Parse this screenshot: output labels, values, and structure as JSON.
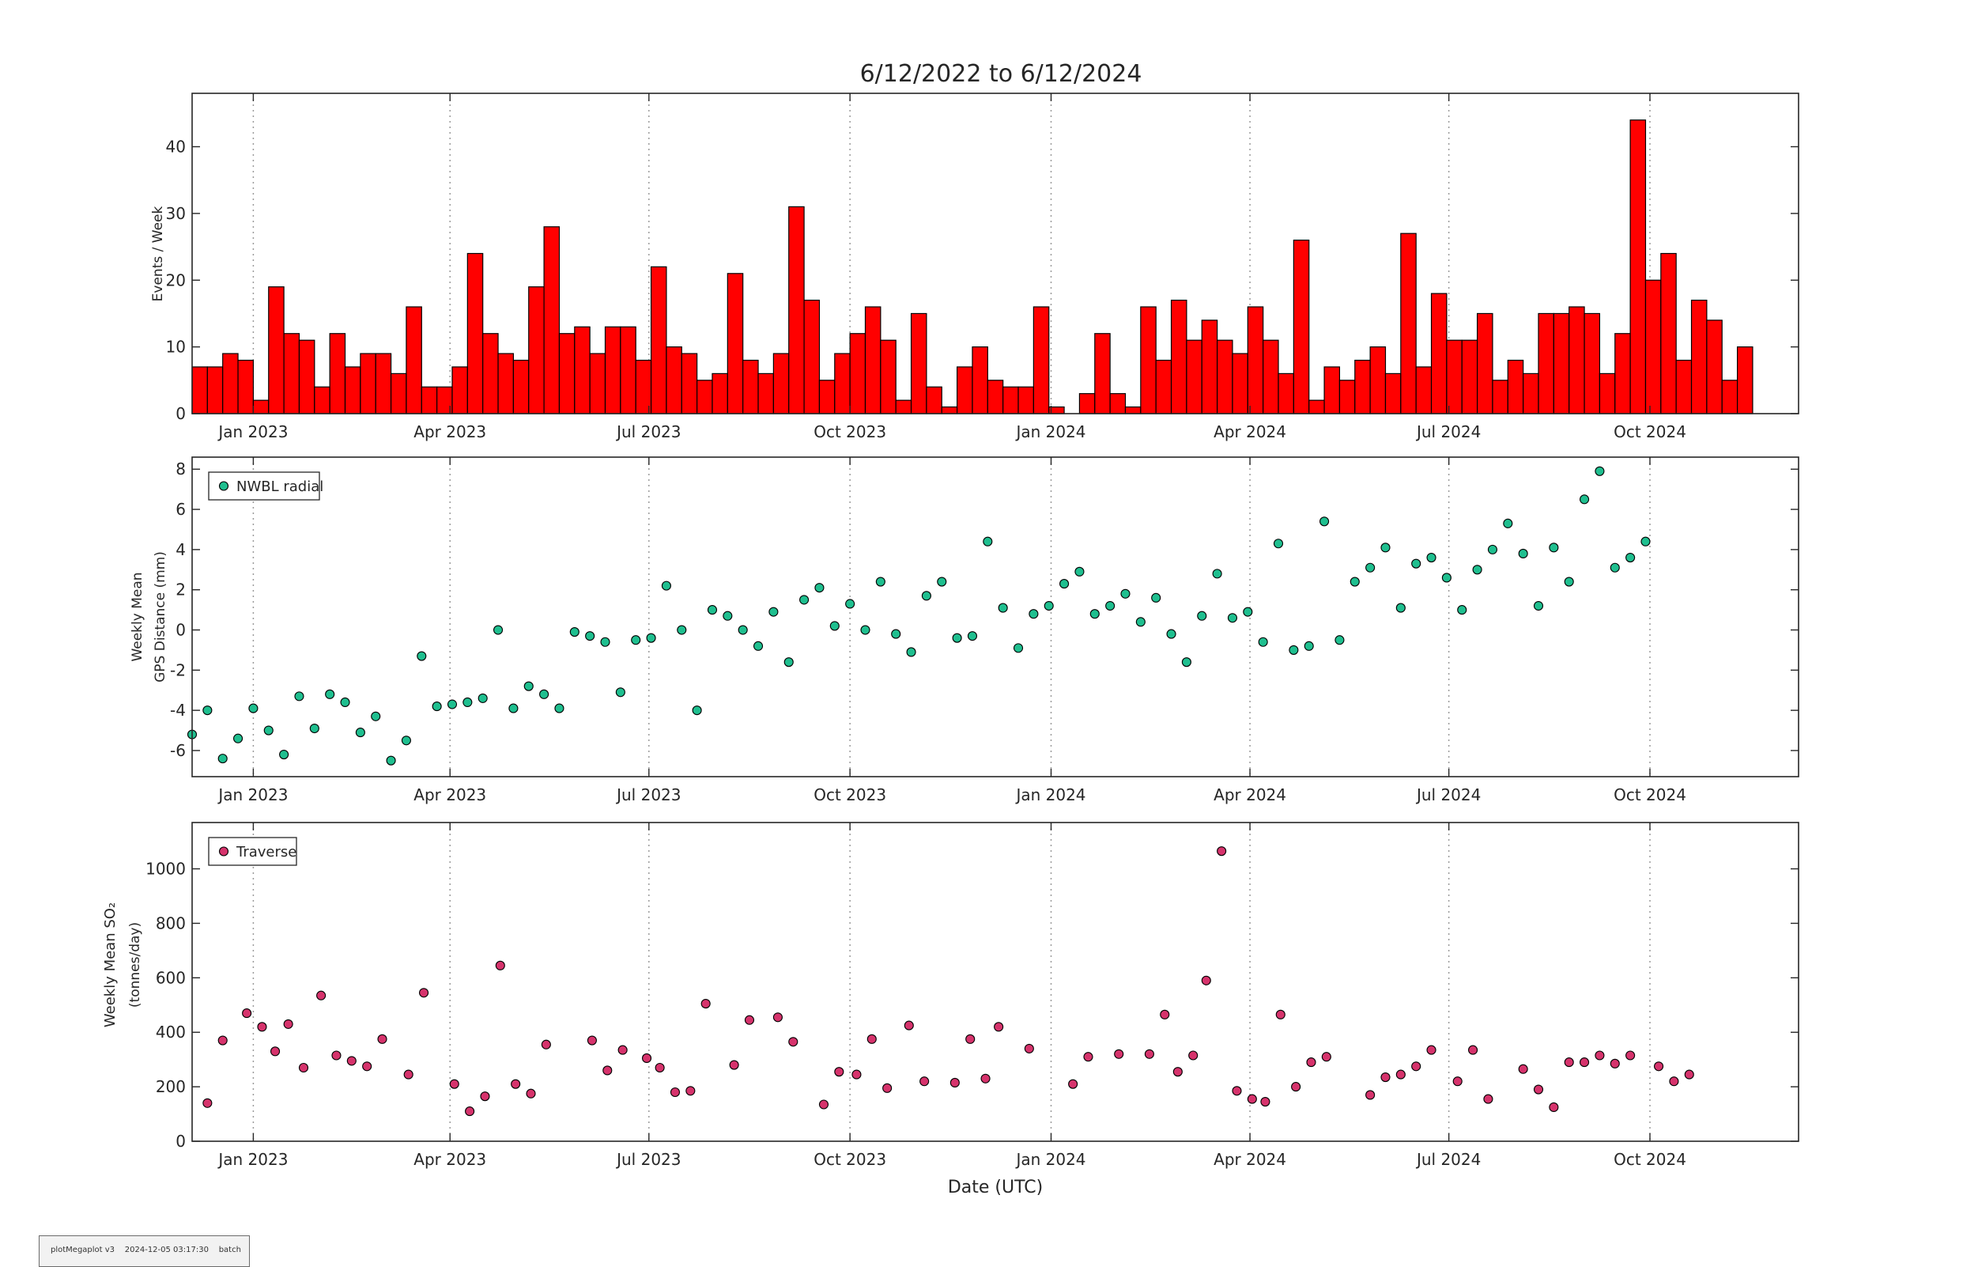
{
  "title": "6/12/2022 to 6/12/2024",
  "footer": {
    "program": "plotMegaplot v3",
    "timestamp": "2024-12-05 03:17:30",
    "mode": "batch"
  },
  "colors": {
    "bar_fill": "#ff0000",
    "gps_marker": "#1fbf8f",
    "so2_marker": "#d6336c",
    "axes": "#262626",
    "grid": "#9a9a9a"
  },
  "chart_data": [
    {
      "type": "bar",
      "panel": "events",
      "ylabel": "Events / Week",
      "ylim": [
        0,
        48
      ],
      "yticks": [
        0,
        10,
        20,
        30,
        40
      ],
      "xlim": [
        "2022-12-04",
        "2024-12-08"
      ],
      "xticks": [
        {
          "date": "2023-01-01",
          "label": "Jan 2023"
        },
        {
          "date": "2023-04-01",
          "label": "Apr 2023"
        },
        {
          "date": "2023-07-01",
          "label": "Jul 2023"
        },
        {
          "date": "2023-10-01",
          "label": "Oct 2023"
        },
        {
          "date": "2024-01-01",
          "label": "Jan 2024"
        },
        {
          "date": "2024-04-01",
          "label": "Apr 2024"
        },
        {
          "date": "2024-07-01",
          "label": "Jul 2024"
        },
        {
          "date": "2024-10-01",
          "label": "Oct 2024"
        }
      ],
      "grid": "vertical dotted at x ticks",
      "week_start": "2022-12-04",
      "bin_days": 7,
      "values": [
        7,
        7,
        9,
        8,
        2,
        19,
        12,
        11,
        4,
        12,
        7,
        9,
        9,
        6,
        16,
        4,
        4,
        7,
        24,
        12,
        9,
        8,
        19,
        28,
        12,
        13,
        9,
        13,
        13,
        8,
        22,
        10,
        9,
        5,
        6,
        21,
        8,
        6,
        9,
        31,
        17,
        5,
        9,
        12,
        16,
        11,
        2,
        15,
        4,
        1,
        7,
        10,
        5,
        4,
        4,
        16,
        1,
        0,
        3,
        12,
        3,
        1,
        16,
        8,
        17,
        11,
        14,
        11,
        9,
        16,
        11,
        6,
        26,
        2,
        7,
        5,
        8,
        10,
        6,
        27,
        7,
        18,
        11,
        11,
        15,
        5,
        8,
        6,
        15,
        15,
        16,
        15,
        6,
        12,
        44,
        20,
        24,
        8,
        17,
        14,
        5,
        10
      ]
    },
    {
      "type": "scatter",
      "panel": "gps",
      "ylabel": [
        "Weekly Mean",
        "GPS Distance (mm)"
      ],
      "ylim": [
        -7.3,
        8.6
      ],
      "yticks": [
        -6,
        -4,
        -2,
        0,
        2,
        4,
        6,
        8
      ],
      "legend": {
        "label": "NWBL radial",
        "placement": "top-left"
      },
      "points": [
        [
          "2022-12-04",
          -5.2
        ],
        [
          "2022-12-11",
          -4.0
        ],
        [
          "2022-12-18",
          -6.4
        ],
        [
          "2022-12-25",
          -5.4
        ],
        [
          "2023-01-01",
          -3.9
        ],
        [
          "2023-01-08",
          -5.0
        ],
        [
          "2023-01-15",
          -6.2
        ],
        [
          "2023-01-22",
          -3.3
        ],
        [
          "2023-01-29",
          -4.9
        ],
        [
          "2023-02-05",
          -3.2
        ],
        [
          "2023-02-12",
          -3.6
        ],
        [
          "2023-02-19",
          -5.1
        ],
        [
          "2023-02-26",
          -4.3
        ],
        [
          "2023-03-05",
          -6.5
        ],
        [
          "2023-03-12",
          -5.5
        ],
        [
          "2023-03-19",
          -1.3
        ],
        [
          "2023-03-26",
          -3.8
        ],
        [
          "2023-04-02",
          -3.7
        ],
        [
          "2023-04-09",
          -3.6
        ],
        [
          "2023-04-16",
          -3.4
        ],
        [
          "2023-04-23",
          0.0
        ],
        [
          "2023-04-30",
          -3.9
        ],
        [
          "2023-05-07",
          -2.8
        ],
        [
          "2023-05-14",
          -3.2
        ],
        [
          "2023-05-21",
          -3.9
        ],
        [
          "2023-05-28",
          -0.1
        ],
        [
          "2023-06-04",
          -0.3
        ],
        [
          "2023-06-11",
          -0.6
        ],
        [
          "2023-06-18",
          -3.1
        ],
        [
          "2023-06-25",
          -0.5
        ],
        [
          "2023-07-02",
          -0.4
        ],
        [
          "2023-07-09",
          2.2
        ],
        [
          "2023-07-16",
          0.0
        ],
        [
          "2023-07-23",
          -4.0
        ],
        [
          "2023-07-30",
          1.0
        ],
        [
          "2023-08-06",
          0.7
        ],
        [
          "2023-08-13",
          0.0
        ],
        [
          "2023-08-20",
          -0.8
        ],
        [
          "2023-08-27",
          0.9
        ],
        [
          "2023-09-03",
          -1.6
        ],
        [
          "2023-09-10",
          1.5
        ],
        [
          "2023-09-17",
          2.1
        ],
        [
          "2023-09-24",
          0.2
        ],
        [
          "2023-10-01",
          1.3
        ],
        [
          "2023-10-08",
          0.0
        ],
        [
          "2023-10-15",
          2.4
        ],
        [
          "2023-10-22",
          -0.2
        ],
        [
          "2023-10-29",
          -1.1
        ],
        [
          "2023-11-05",
          1.7
        ],
        [
          "2023-11-12",
          2.4
        ],
        [
          "2023-11-19",
          -0.4
        ],
        [
          "2023-11-26",
          -0.3
        ],
        [
          "2023-12-03",
          4.4
        ],
        [
          "2023-12-10",
          1.1
        ],
        [
          "2023-12-17",
          -0.9
        ],
        [
          "2023-12-24",
          0.8
        ],
        [
          "2023-12-31",
          1.2
        ],
        [
          "2024-01-07",
          2.3
        ],
        [
          "2024-01-14",
          2.9
        ],
        [
          "2024-01-21",
          0.8
        ],
        [
          "2024-01-28",
          1.2
        ],
        [
          "2024-02-04",
          1.8
        ],
        [
          "2024-02-11",
          0.4
        ],
        [
          "2024-02-18",
          1.6
        ],
        [
          "2024-02-25",
          -0.2
        ],
        [
          "2024-03-03",
          -1.6
        ],
        [
          "2024-03-10",
          0.7
        ],
        [
          "2024-03-17",
          2.8
        ],
        [
          "2024-03-24",
          0.6
        ],
        [
          "2024-03-31",
          0.9
        ],
        [
          "2024-04-07",
          -0.6
        ],
        [
          "2024-04-14",
          4.3
        ],
        [
          "2024-04-21",
          -1.0
        ],
        [
          "2024-04-28",
          -0.8
        ],
        [
          "2024-05-05",
          5.4
        ],
        [
          "2024-05-12",
          -0.5
        ],
        [
          "2024-05-19",
          2.4
        ],
        [
          "2024-05-26",
          3.1
        ],
        [
          "2024-06-02",
          4.1
        ],
        [
          "2024-06-09",
          1.1
        ],
        [
          "2024-06-16",
          3.3
        ],
        [
          "2024-06-23",
          3.6
        ],
        [
          "2024-06-30",
          2.6
        ],
        [
          "2024-07-07",
          1.0
        ],
        [
          "2024-07-14",
          3.0
        ],
        [
          "2024-07-21",
          4.0
        ],
        [
          "2024-07-28",
          5.3
        ],
        [
          "2024-08-04",
          3.8
        ],
        [
          "2024-08-11",
          1.2
        ],
        [
          "2024-08-18",
          4.1
        ],
        [
          "2024-08-25",
          2.4
        ],
        [
          "2024-09-01",
          6.5
        ],
        [
          "2024-09-08",
          7.9
        ],
        [
          "2024-09-15",
          3.1
        ],
        [
          "2024-09-22",
          3.6
        ],
        [
          "2024-09-29",
          4.4
        ]
      ]
    },
    {
      "type": "scatter",
      "panel": "so2",
      "ylabel": [
        "Weekly Mean SO₂",
        "(tonnes/day)"
      ],
      "xlabel": "Date (UTC)",
      "ylim": [
        0,
        1170
      ],
      "yticks": [
        0,
        200,
        400,
        600,
        800,
        1000
      ],
      "legend": {
        "label": "Traverse",
        "placement": "top-left"
      },
      "points": [
        [
          "2022-12-11",
          140
        ],
        [
          "2022-12-18",
          370
        ],
        [
          "2022-12-29",
          470
        ],
        [
          "2023-01-05",
          420
        ],
        [
          "2023-01-11",
          330
        ],
        [
          "2023-01-17",
          430
        ],
        [
          "2023-01-24",
          270
        ],
        [
          "2023-02-01",
          535
        ],
        [
          "2023-02-08",
          315
        ],
        [
          "2023-02-15",
          295
        ],
        [
          "2023-02-22",
          275
        ],
        [
          "2023-03-01",
          375
        ],
        [
          "2023-03-13",
          245
        ],
        [
          "2023-03-20",
          545
        ],
        [
          "2023-04-03",
          210
        ],
        [
          "2023-04-10",
          110
        ],
        [
          "2023-04-17",
          165
        ],
        [
          "2023-04-24",
          645
        ],
        [
          "2023-05-01",
          210
        ],
        [
          "2023-05-08",
          175
        ],
        [
          "2023-05-15",
          355
        ],
        [
          "2023-06-05",
          370
        ],
        [
          "2023-06-12",
          260
        ],
        [
          "2023-06-19",
          335
        ],
        [
          "2023-06-30",
          305
        ],
        [
          "2023-07-06",
          270
        ],
        [
          "2023-07-13",
          180
        ],
        [
          "2023-07-20",
          185
        ],
        [
          "2023-07-27",
          505
        ],
        [
          "2023-08-09",
          280
        ],
        [
          "2023-08-16",
          445
        ],
        [
          "2023-08-29",
          455
        ],
        [
          "2023-09-05",
          365
        ],
        [
          "2023-09-19",
          135
        ],
        [
          "2023-09-26",
          255
        ],
        [
          "2023-10-04",
          245
        ],
        [
          "2023-10-11",
          375
        ],
        [
          "2023-10-18",
          195
        ],
        [
          "2023-10-28",
          425
        ],
        [
          "2023-11-04",
          220
        ],
        [
          "2023-11-18",
          215
        ],
        [
          "2023-11-25",
          375
        ],
        [
          "2023-12-02",
          230
        ],
        [
          "2023-12-08",
          420
        ],
        [
          "2023-12-22",
          340
        ],
        [
          "2024-01-11",
          210
        ],
        [
          "2024-01-18",
          310
        ],
        [
          "2024-02-01",
          320
        ],
        [
          "2024-02-15",
          320
        ],
        [
          "2024-02-22",
          465
        ],
        [
          "2024-02-28",
          255
        ],
        [
          "2024-03-06",
          315
        ],
        [
          "2024-03-12",
          590
        ],
        [
          "2024-03-19",
          1065
        ],
        [
          "2024-03-26",
          185
        ],
        [
          "2024-04-02",
          155
        ],
        [
          "2024-04-08",
          145
        ],
        [
          "2024-04-15",
          465
        ],
        [
          "2024-04-22",
          200
        ],
        [
          "2024-04-29",
          290
        ],
        [
          "2024-05-06",
          310
        ],
        [
          "2024-05-26",
          170
        ],
        [
          "2024-06-02",
          235
        ],
        [
          "2024-06-09",
          245
        ],
        [
          "2024-06-16",
          275
        ],
        [
          "2024-06-23",
          335
        ],
        [
          "2024-07-05",
          220
        ],
        [
          "2024-07-12",
          335
        ],
        [
          "2024-07-19",
          155
        ],
        [
          "2024-08-04",
          265
        ],
        [
          "2024-08-11",
          190
        ],
        [
          "2024-08-18",
          125
        ],
        [
          "2024-08-25",
          290
        ],
        [
          "2024-09-01",
          290
        ],
        [
          "2024-09-08",
          315
        ],
        [
          "2024-09-15",
          285
        ],
        [
          "2024-09-22",
          315
        ],
        [
          "2024-10-05",
          275
        ],
        [
          "2024-10-12",
          220
        ],
        [
          "2024-10-19",
          245
        ]
      ]
    }
  ]
}
